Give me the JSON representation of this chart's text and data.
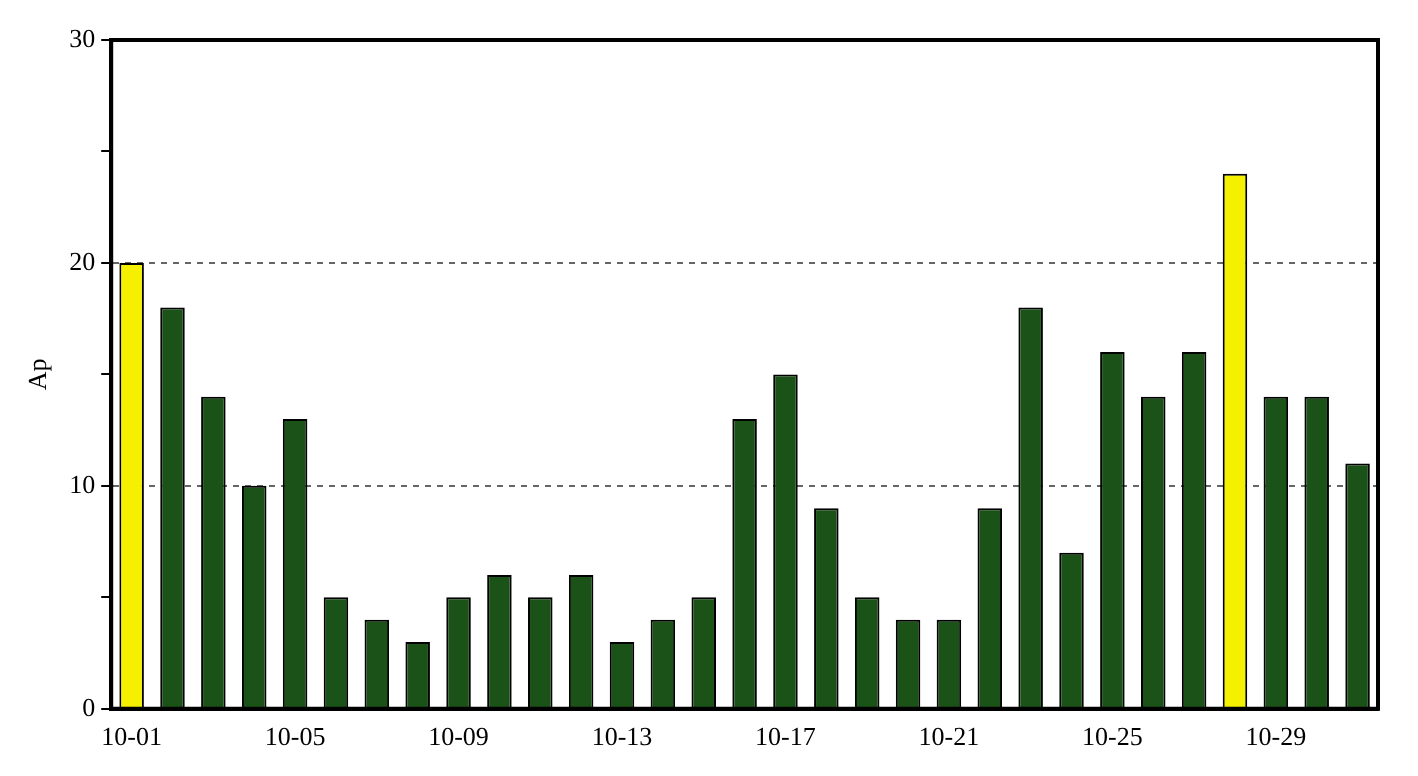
{
  "chart_data": {
    "type": "bar",
    "ylabel": "Ap",
    "categories": [
      "10-01",
      null,
      null,
      null,
      "10-05",
      null,
      null,
      null,
      "10-09",
      null,
      null,
      null,
      "10-13",
      null,
      null,
      null,
      "10-17",
      null,
      null,
      null,
      "10-21",
      null,
      null,
      null,
      "10-25",
      null,
      null,
      null,
      "10-29",
      null,
      null
    ],
    "values": [
      20,
      18,
      14,
      10,
      13,
      5,
      4,
      3,
      5,
      6,
      5,
      6,
      3,
      4,
      5,
      13,
      15,
      9,
      5,
      4,
      4,
      9,
      18,
      7,
      16,
      14,
      16,
      24,
      14,
      14,
      11
    ],
    "colors": [
      "#f5f000",
      "#1b5218",
      "#1b5218",
      "#1b5218",
      "#1b5218",
      "#1b5218",
      "#1b5218",
      "#1b5218",
      "#1b5218",
      "#1b5218",
      "#1b5218",
      "#1b5218",
      "#1b5218",
      "#1b5218",
      "#1b5218",
      "#1b5218",
      "#1b5218",
      "#1b5218",
      "#1b5218",
      "#1b5218",
      "#1b5218",
      "#1b5218",
      "#1b5218",
      "#1b5218",
      "#1b5218",
      "#1b5218",
      "#1b5218",
      "#f5f000",
      "#1b5218",
      "#1b5218",
      "#1b5218"
    ],
    "ylim": [
      0,
      30
    ],
    "yticks": [
      0,
      {
        "value": 5,
        "label": null
      },
      10,
      {
        "value": 15,
        "label": null
      },
      20,
      {
        "value": 25,
        "label": null
      },
      30
    ],
    "grid": "y",
    "line_style": "dashed"
  }
}
